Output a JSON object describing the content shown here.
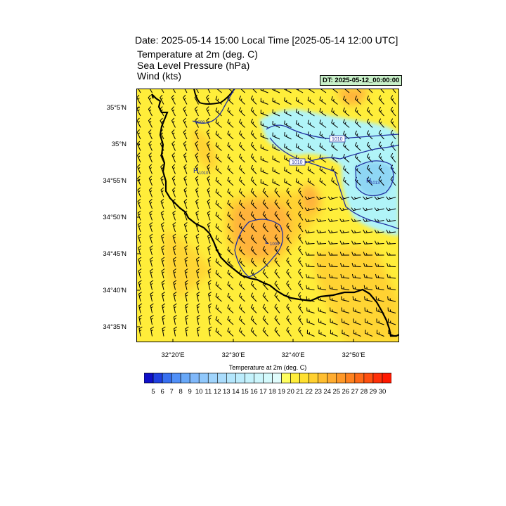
{
  "header": {
    "title": "Date: 2025-05-14  15:00 Local Time [2025-05-14  12:00 UTC]",
    "fields": [
      "Temperature at 2m   (deg. C)",
      "Sea Level Pressure   (hPa)",
      "Wind   (kts)"
    ],
    "dt_label": "DT: 2025-05-12_00:00:00"
  },
  "map": {
    "lat_labels": [
      "35°5'N",
      "35°N",
      "34°55'N",
      "34°50'N",
      "34°45'N",
      "34°40'N",
      "34°35'N"
    ],
    "lon_labels": [
      "32°20'E",
      "32°30'E",
      "32°40'E",
      "32°50'E"
    ],
    "pressure_labels": [
      {
        "text": "1009",
        "kind": "contour"
      },
      {
        "text": "H",
        "sub": "1010",
        "kind": "high"
      },
      {
        "text": "1010",
        "kind": "contour"
      },
      {
        "text": "1010",
        "kind": "contour"
      },
      {
        "text": "L",
        "sub": "1009",
        "kind": "low"
      },
      {
        "text": "H",
        "sub": "1013",
        "kind": "high"
      }
    ],
    "colors": {
      "land_warm": "#ffee3a",
      "warm_22": "#ffd230",
      "warm_24": "#ffb23a",
      "cool_18": "#b0f4f8",
      "cool_16": "#8ed6f4",
      "contour": "#2030a0",
      "coast": "#000000"
    }
  },
  "colorbar": {
    "title": "Temperature at 2m  (deg. C)",
    "labels": [
      "5",
      "6",
      "7",
      "8",
      "9",
      "10",
      "11",
      "12",
      "13",
      "14",
      "15",
      "16",
      "17",
      "18",
      "19",
      "20",
      "21",
      "22",
      "23",
      "24",
      "25",
      "26",
      "27",
      "28",
      "29",
      "30"
    ],
    "colors": [
      "#1010c8",
      "#2040e0",
      "#3870f0",
      "#5090f8",
      "#68a8f8",
      "#80b8fa",
      "#90c8fc",
      "#a0d4fc",
      "#aadcfc",
      "#b4e6fc",
      "#bcecfc",
      "#c4f2fc",
      "#ccf6fc",
      "#d4fafc",
      "#e0fcfc",
      "#ffff60",
      "#ffee3a",
      "#ffe030",
      "#ffd030",
      "#ffbe30",
      "#ffac30",
      "#ff9828",
      "#ff8220",
      "#ff6a18",
      "#ff5010",
      "#ff3008",
      "#ff1800"
    ]
  }
}
